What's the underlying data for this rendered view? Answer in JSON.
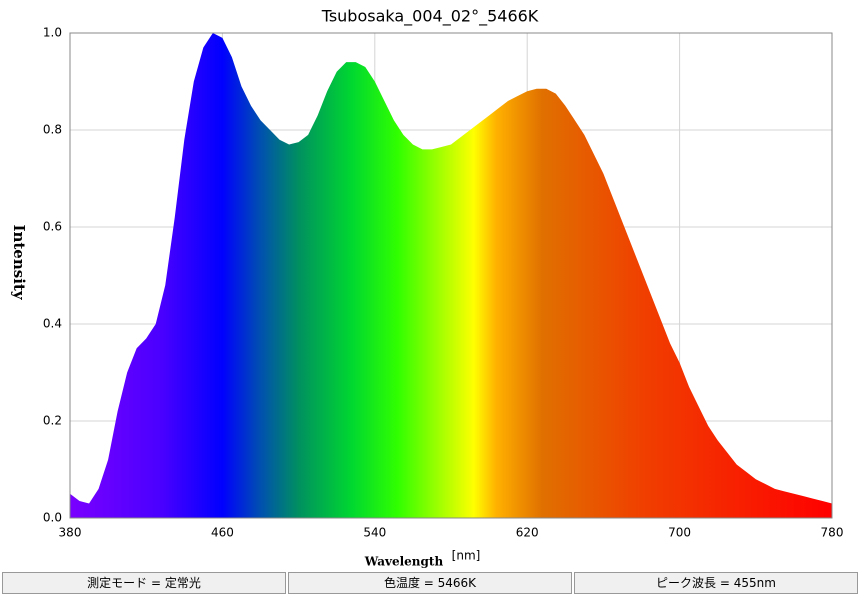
{
  "chart_data": {
    "type": "area",
    "title": "Tsubosaka_004_02°_5466K",
    "xlabel": "Wavelength",
    "xunit": "[nm]",
    "ylabel": "Intensity",
    "x": [
      380,
      385,
      390,
      395,
      400,
      405,
      410,
      415,
      420,
      425,
      430,
      435,
      440,
      445,
      450,
      455,
      460,
      465,
      470,
      475,
      480,
      485,
      490,
      495,
      500,
      505,
      510,
      515,
      520,
      525,
      530,
      535,
      540,
      545,
      550,
      555,
      560,
      565,
      570,
      575,
      580,
      585,
      590,
      595,
      600,
      605,
      610,
      615,
      620,
      625,
      630,
      635,
      640,
      645,
      650,
      655,
      660,
      665,
      670,
      675,
      680,
      685,
      690,
      695,
      700,
      705,
      710,
      715,
      720,
      725,
      730,
      735,
      740,
      745,
      750,
      755,
      760,
      765,
      770,
      775,
      780
    ],
    "y": [
      0.05,
      0.035,
      0.03,
      0.06,
      0.12,
      0.22,
      0.3,
      0.35,
      0.37,
      0.4,
      0.48,
      0.62,
      0.78,
      0.9,
      0.97,
      1.0,
      0.99,
      0.95,
      0.89,
      0.85,
      0.82,
      0.8,
      0.78,
      0.77,
      0.775,
      0.79,
      0.83,
      0.88,
      0.92,
      0.94,
      0.94,
      0.93,
      0.9,
      0.86,
      0.82,
      0.79,
      0.77,
      0.76,
      0.76,
      0.765,
      0.77,
      0.785,
      0.8,
      0.815,
      0.83,
      0.845,
      0.86,
      0.87,
      0.88,
      0.885,
      0.885,
      0.875,
      0.85,
      0.82,
      0.79,
      0.75,
      0.71,
      0.66,
      0.61,
      0.56,
      0.51,
      0.46,
      0.41,
      0.36,
      0.32,
      0.27,
      0.23,
      0.19,
      0.16,
      0.135,
      0.11,
      0.095,
      0.08,
      0.07,
      0.06,
      0.055,
      0.05,
      0.045,
      0.04,
      0.035,
      0.03
    ],
    "xlim": [
      380,
      780
    ],
    "xticks": [
      380,
      460,
      540,
      620,
      700,
      780
    ],
    "ylim": [
      0,
      1
    ],
    "yticks": [
      {
        "value": 0,
        "label": "0.0"
      },
      0.2,
      0.4,
      0.6,
      0.8,
      {
        "value": 1,
        "label": "1.0"
      }
    ],
    "grid": true
  },
  "status_bar": [
    "測定モード = 定常光",
    "色温度 = 5466K",
    "ピーク波長 = 455nm"
  ]
}
